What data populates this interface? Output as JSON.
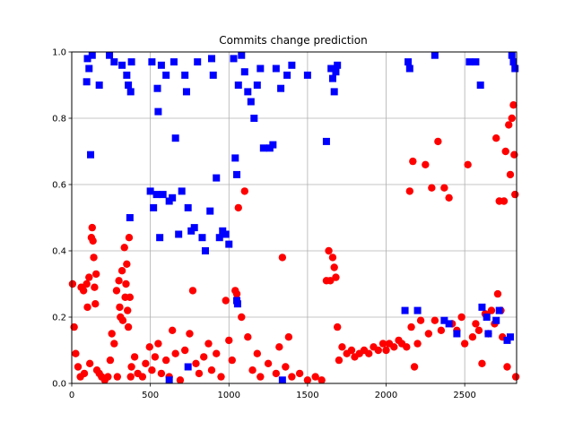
{
  "chart_data": {
    "type": "scatter",
    "title": "Commits change prediction",
    "xlabel": "",
    "ylabel": "",
    "xlim": [
      0,
      2830
    ],
    "ylim": [
      0,
      1.0
    ],
    "grid": true,
    "x_ticks": [
      0,
      500,
      1000,
      1500,
      2000,
      2500
    ],
    "x_tick_labels": [
      "0",
      "500",
      "1000",
      "1500",
      "2000",
      "2500"
    ],
    "y_ticks": [
      0.0,
      0.2,
      0.4,
      0.6,
      0.8,
      1.0
    ],
    "y_tick_labels": [
      "0.0",
      "0.2",
      "0.4",
      "0.6",
      "0.8",
      "1.0"
    ],
    "series": [
      {
        "marker": "circle",
        "color": "#ff0000",
        "points": [
          [
            5,
            0.3
          ],
          [
            15,
            0.17
          ],
          [
            25,
            0.09
          ],
          [
            40,
            0.05
          ],
          [
            55,
            0.02
          ],
          [
            60,
            0.29
          ],
          [
            75,
            0.28
          ],
          [
            80,
            0.03
          ],
          [
            95,
            0.3
          ],
          [
            100,
            0.23
          ],
          [
            110,
            0.32
          ],
          [
            115,
            0.06
          ],
          [
            125,
            0.44
          ],
          [
            130,
            0.47
          ],
          [
            135,
            0.43
          ],
          [
            140,
            0.38
          ],
          [
            145,
            0.29
          ],
          [
            150,
            0.24
          ],
          [
            155,
            0.33
          ],
          [
            160,
            0.04
          ],
          [
            175,
            0.03
          ],
          [
            190,
            0.02
          ],
          [
            210,
            0.01
          ],
          [
            230,
            0.02
          ],
          [
            245,
            0.07
          ],
          [
            255,
            0.15
          ],
          [
            270,
            0.12
          ],
          [
            285,
            0.28
          ],
          [
            290,
            0.02
          ],
          [
            300,
            0.31
          ],
          [
            305,
            0.23
          ],
          [
            310,
            0.2
          ],
          [
            320,
            0.34
          ],
          [
            325,
            0.19
          ],
          [
            335,
            0.41
          ],
          [
            340,
            0.26
          ],
          [
            345,
            0.3
          ],
          [
            350,
            0.36
          ],
          [
            355,
            0.22
          ],
          [
            360,
            0.17
          ],
          [
            365,
            0.44
          ],
          [
            370,
            0.26
          ],
          [
            375,
            0.02
          ],
          [
            380,
            0.05
          ],
          [
            400,
            0.08
          ],
          [
            420,
            0.03
          ],
          [
            450,
            0.02
          ],
          [
            470,
            0.06
          ],
          [
            495,
            0.11
          ],
          [
            510,
            0.04
          ],
          [
            530,
            0.08
          ],
          [
            550,
            0.12
          ],
          [
            570,
            0.03
          ],
          [
            600,
            0.07
          ],
          [
            620,
            0.02
          ],
          [
            640,
            0.16
          ],
          [
            660,
            0.09
          ],
          [
            690,
            0.01
          ],
          [
            720,
            0.1
          ],
          [
            750,
            0.15
          ],
          [
            770,
            0.28
          ],
          [
            790,
            0.06
          ],
          [
            810,
            0.03
          ],
          [
            840,
            0.08
          ],
          [
            870,
            0.12
          ],
          [
            890,
            0.04
          ],
          [
            920,
            0.09
          ],
          [
            950,
            0.02
          ],
          [
            980,
            0.25
          ],
          [
            1000,
            0.13
          ],
          [
            1020,
            0.07
          ],
          [
            1040,
            0.28
          ],
          [
            1050,
            0.27
          ],
          [
            1060,
            0.53
          ],
          [
            1080,
            0.2
          ],
          [
            1100,
            0.58
          ],
          [
            1120,
            0.14
          ],
          [
            1150,
            0.04
          ],
          [
            1180,
            0.09
          ],
          [
            1200,
            0.02
          ],
          [
            1250,
            0.06
          ],
          [
            1300,
            0.03
          ],
          [
            1320,
            0.11
          ],
          [
            1340,
            0.38
          ],
          [
            1360,
            0.05
          ],
          [
            1380,
            0.14
          ],
          [
            1400,
            0.02
          ],
          [
            1450,
            0.03
          ],
          [
            1500,
            0.01
          ],
          [
            1550,
            0.02
          ],
          [
            1590,
            0.01
          ],
          [
            1620,
            0.31
          ],
          [
            1635,
            0.4
          ],
          [
            1645,
            0.31
          ],
          [
            1660,
            0.38
          ],
          [
            1670,
            0.35
          ],
          [
            1680,
            0.32
          ],
          [
            1690,
            0.17
          ],
          [
            1700,
            0.07
          ],
          [
            1720,
            0.11
          ],
          [
            1750,
            0.09
          ],
          [
            1780,
            0.1
          ],
          [
            1800,
            0.08
          ],
          [
            1830,
            0.09
          ],
          [
            1860,
            0.1
          ],
          [
            1890,
            0.09
          ],
          [
            1920,
            0.11
          ],
          [
            1950,
            0.1
          ],
          [
            1980,
            0.12
          ],
          [
            2000,
            0.1
          ],
          [
            2020,
            0.12
          ],
          [
            2050,
            0.11
          ],
          [
            2080,
            0.13
          ],
          [
            2100,
            0.12
          ],
          [
            2130,
            0.11
          ],
          [
            2150,
            0.58
          ],
          [
            2160,
            0.17
          ],
          [
            2170,
            0.67
          ],
          [
            2180,
            0.05
          ],
          [
            2200,
            0.12
          ],
          [
            2220,
            0.19
          ],
          [
            2250,
            0.66
          ],
          [
            2270,
            0.15
          ],
          [
            2290,
            0.59
          ],
          [
            2310,
            0.19
          ],
          [
            2330,
            0.73
          ],
          [
            2350,
            0.16
          ],
          [
            2370,
            0.59
          ],
          [
            2400,
            0.56
          ],
          [
            2420,
            0.18
          ],
          [
            2450,
            0.16
          ],
          [
            2480,
            0.2
          ],
          [
            2500,
            0.12
          ],
          [
            2520,
            0.66
          ],
          [
            2550,
            0.14
          ],
          [
            2570,
            0.18
          ],
          [
            2590,
            0.16
          ],
          [
            2610,
            0.06
          ],
          [
            2630,
            0.21
          ],
          [
            2650,
            0.15
          ],
          [
            2670,
            0.22
          ],
          [
            2690,
            0.18
          ],
          [
            2700,
            0.74
          ],
          [
            2710,
            0.27
          ],
          [
            2720,
            0.55
          ],
          [
            2730,
            0.22
          ],
          [
            2740,
            0.14
          ],
          [
            2750,
            0.55
          ],
          [
            2760,
            0.7
          ],
          [
            2770,
            0.05
          ],
          [
            2780,
            0.78
          ],
          [
            2790,
            0.63
          ],
          [
            2800,
            0.8
          ],
          [
            2810,
            0.84
          ],
          [
            2815,
            0.69
          ],
          [
            2820,
            0.57
          ],
          [
            2825,
            0.02
          ]
        ]
      },
      {
        "marker": "square",
        "color": "#0000ff",
        "points": [
          [
            95,
            0.91
          ],
          [
            100,
            0.98
          ],
          [
            110,
            0.95
          ],
          [
            120,
            0.69
          ],
          [
            130,
            0.99
          ],
          [
            175,
            0.9
          ],
          [
            240,
            0.99
          ],
          [
            270,
            0.97
          ],
          [
            320,
            0.96
          ],
          [
            350,
            0.93
          ],
          [
            360,
            0.9
          ],
          [
            370,
            0.5
          ],
          [
            375,
            0.88
          ],
          [
            380,
            0.97
          ],
          [
            500,
            0.58
          ],
          [
            510,
            0.97
          ],
          [
            520,
            0.53
          ],
          [
            540,
            0.57
          ],
          [
            545,
            0.89
          ],
          [
            550,
            0.82
          ],
          [
            560,
            0.44
          ],
          [
            570,
            0.96
          ],
          [
            580,
            0.57
          ],
          [
            600,
            0.93
          ],
          [
            620,
            0.55
          ],
          [
            640,
            0.56
          ],
          [
            650,
            0.97
          ],
          [
            660,
            0.74
          ],
          [
            680,
            0.45
          ],
          [
            700,
            0.58
          ],
          [
            720,
            0.93
          ],
          [
            730,
            0.88
          ],
          [
            740,
            0.53
          ],
          [
            760,
            0.46
          ],
          [
            780,
            0.47
          ],
          [
            800,
            0.97
          ],
          [
            830,
            0.44
          ],
          [
            850,
            0.4
          ],
          [
            880,
            0.52
          ],
          [
            890,
            0.98
          ],
          [
            900,
            0.93
          ],
          [
            920,
            0.62
          ],
          [
            940,
            0.44
          ],
          [
            960,
            0.46
          ],
          [
            980,
            0.45
          ],
          [
            1000,
            0.42
          ],
          [
            1030,
            0.98
          ],
          [
            1040,
            0.68
          ],
          [
            1050,
            0.63
          ],
          [
            1060,
            0.9
          ],
          [
            1080,
            0.99
          ],
          [
            1100,
            0.94
          ],
          [
            1120,
            0.88
          ],
          [
            1140,
            0.85
          ],
          [
            1160,
            0.8
          ],
          [
            1180,
            0.9
          ],
          [
            1200,
            0.95
          ],
          [
            1220,
            0.71
          ],
          [
            1260,
            0.71
          ],
          [
            1280,
            0.72
          ],
          [
            1300,
            0.95
          ],
          [
            1330,
            0.89
          ],
          [
            1370,
            0.93
          ],
          [
            1400,
            0.96
          ],
          [
            1500,
            0.93
          ],
          [
            1620,
            0.73
          ],
          [
            1650,
            0.95
          ],
          [
            1660,
            0.92
          ],
          [
            1670,
            0.88
          ],
          [
            1680,
            0.94
          ],
          [
            1690,
            0.96
          ],
          [
            1050,
            0.25
          ],
          [
            1055,
            0.24
          ],
          [
            740,
            0.05
          ],
          [
            620,
            0.01
          ],
          [
            1340,
            0.01
          ],
          [
            2120,
            0.22
          ],
          [
            2140,
            0.97
          ],
          [
            2150,
            0.95
          ],
          [
            2200,
            0.22
          ],
          [
            2310,
            0.99
          ],
          [
            2370,
            0.19
          ],
          [
            2400,
            0.18
          ],
          [
            2450,
            0.15
          ],
          [
            2530,
            0.97
          ],
          [
            2570,
            0.97
          ],
          [
            2600,
            0.9
          ],
          [
            2610,
            0.23
          ],
          [
            2640,
            0.2
          ],
          [
            2650,
            0.15
          ],
          [
            2700,
            0.19
          ],
          [
            2720,
            0.22
          ],
          [
            2770,
            0.13
          ],
          [
            2790,
            0.14
          ],
          [
            2800,
            0.99
          ],
          [
            2810,
            0.97
          ],
          [
            2820,
            0.95
          ]
        ]
      }
    ]
  }
}
